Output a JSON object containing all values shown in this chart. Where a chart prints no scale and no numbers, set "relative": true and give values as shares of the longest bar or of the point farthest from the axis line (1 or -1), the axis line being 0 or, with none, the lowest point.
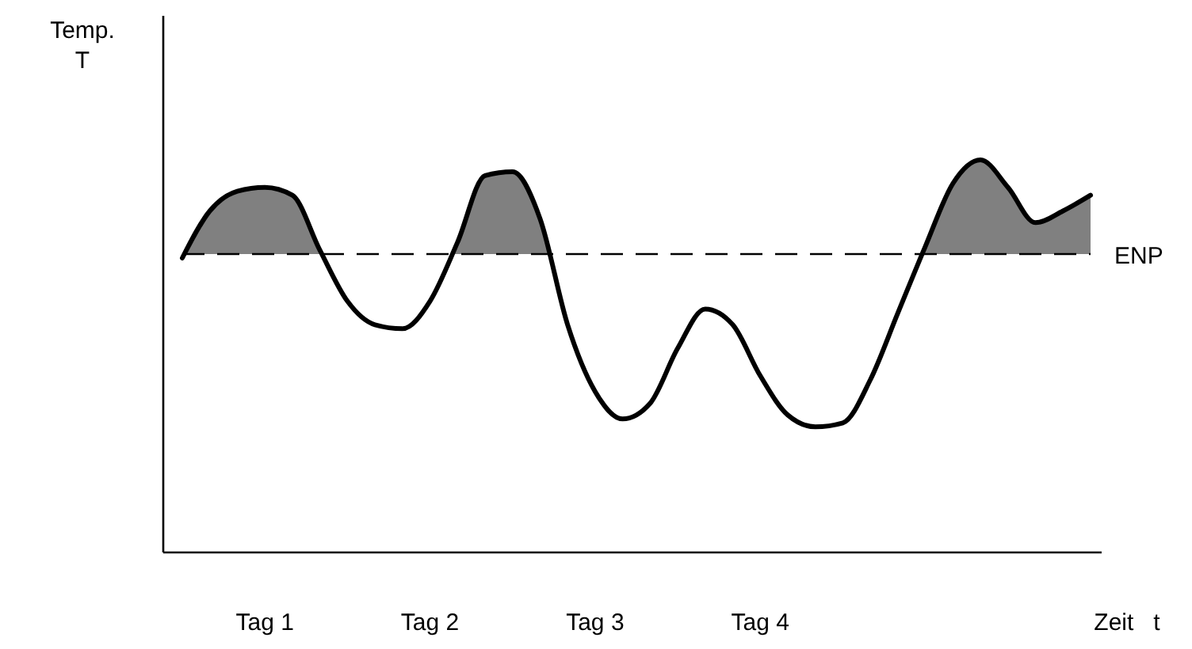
{
  "chart_data": {
    "type": "line",
    "relative": true,
    "ylabel": "Temp.\nT",
    "xlabel": "Zeit   t",
    "categories": [
      null,
      null,
      null,
      "Tag 1",
      null,
      null,
      null,
      null,
      null,
      "Tag 2",
      null,
      null,
      null,
      null,
      null,
      "Tag 3",
      null,
      null,
      null,
      null,
      null,
      "Tag 4",
      null,
      null,
      null,
      null,
      null,
      null,
      null,
      null,
      null,
      null,
      null,
      null
    ],
    "ref_lines": [
      {
        "axis": "y",
        "value": 0.76,
        "label": "ENP",
        "color": "#000000",
        "line_style": "dashed"
      }
    ],
    "series": [
      {
        "color": "#000000",
        "values": [
          0.75,
          0.87,
          0.92,
          0.93,
          0.91,
          0.77,
          0.64,
          0.58,
          0.57,
          0.64,
          0.79,
          0.96,
          0.97,
          0.85,
          0.58,
          0.41,
          0.34,
          0.38,
          0.52,
          0.62,
          0.58,
          0.45,
          0.35,
          0.32,
          0.33,
          0.44,
          0.61,
          0.78,
          0.94,
          1.0,
          0.93,
          0.84,
          0.87,
          0.91
        ]
      }
    ]
  }
}
